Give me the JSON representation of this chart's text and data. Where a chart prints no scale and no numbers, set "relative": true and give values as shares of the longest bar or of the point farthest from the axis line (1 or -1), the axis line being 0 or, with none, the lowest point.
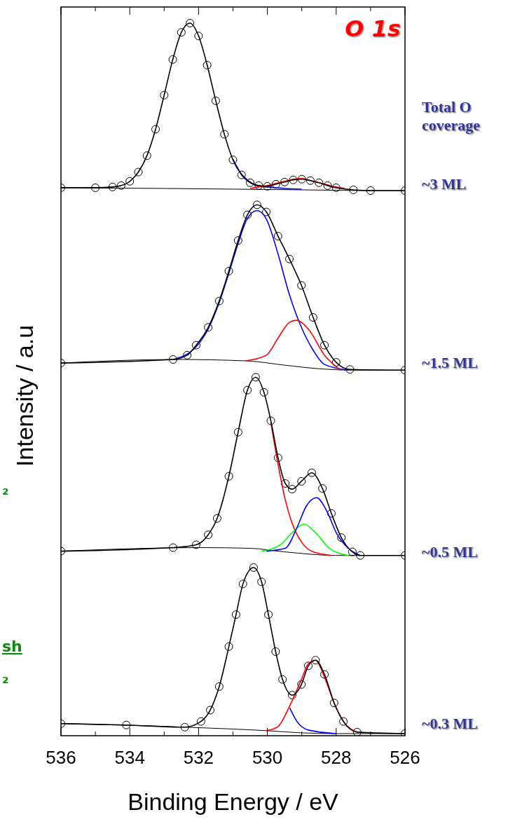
{
  "chart_data": {
    "type": "line",
    "title": "O 1s",
    "xlabel": "Binding Energy / eV",
    "ylabel": "Intensity / a.u",
    "relative": true,
    "tick_labels": "x",
    "xlim": [
      536,
      526
    ],
    "xticks": [
      536,
      {
        "value": 535,
        "label": null
      },
      534,
      {
        "value": 533,
        "label": null
      },
      532,
      {
        "value": 531,
        "label": null
      },
      530,
      {
        "value": 529,
        "label": null
      },
      528,
      {
        "value": 527,
        "label": null
      },
      526
    ],
    "annotations": [
      "Total O coverage",
      "~3 ML",
      "~1.5 ML",
      "~0.5 ML",
      "~0.3 ML",
      "₂",
      "sh",
      "₂"
    ],
    "series": [
      {
        "type": "scatter",
        "marker": "circle",
        "color": "#000000",
        "x": [
          536,
          535,
          534.5,
          534.25,
          534,
          533.75,
          533.5,
          533.25,
          533,
          532.75,
          532.5,
          532.25,
          532,
          531.75,
          531.5,
          531.25,
          531,
          530.75,
          530.5,
          530.25,
          530,
          529.75,
          529.5,
          529.25,
          529,
          528.75,
          528.5,
          528.25,
          528,
          527.5,
          527,
          526
        ],
        "values": [
          0.769,
          0.769,
          0.77,
          0.772,
          0.778,
          0.791,
          0.814,
          0.851,
          0.899,
          0.949,
          0.987,
          1.0,
          0.982,
          0.941,
          0.891,
          0.844,
          0.808,
          0.787,
          0.776,
          0.772,
          0.771,
          0.774,
          0.777,
          0.78,
          0.781,
          0.779,
          0.776,
          0.772,
          0.769,
          0.766,
          0.765,
          0.765
        ]
      },
      {
        "type": "line",
        "color": "#000000",
        "x": [
          536,
          533,
          531,
          529,
          527,
          526
        ],
        "values": [
          0.769,
          0.768,
          0.767,
          0.766,
          0.765,
          0.765
        ]
      },
      {
        "color": "#0000ff",
        "x": [
          531,
          530.75,
          530.5,
          530.25,
          530,
          529.5,
          529
        ],
        "values": [
          0.809,
          0.788,
          0.777,
          0.771,
          0.77,
          0.768,
          0.767
        ]
      },
      {
        "type": "line",
        "color": "#ff0000",
        "x": [
          530.5,
          530.25,
          530,
          529.75,
          529.5,
          529.25,
          529,
          528.75,
          528.5,
          528.25,
          528,
          527.75
        ],
        "values": [
          0.768,
          0.77,
          0.772,
          0.775,
          0.778,
          0.781,
          0.782,
          0.779,
          0.776,
          0.773,
          0.77,
          0.768
        ]
      },
      {
        "type": "line",
        "color": "#000000",
        "x": [
          536,
          535,
          534.5,
          534.25,
          534,
          533.75,
          533.5,
          533.25,
          533,
          532.75,
          532.5,
          532.25,
          532,
          531.75,
          531.5,
          531.25,
          531,
          530.75,
          530.5,
          530.25,
          530,
          529.75,
          529.5,
          529.25,
          529,
          528.75,
          528.5,
          528.25,
          528,
          527.5,
          527,
          526
        ],
        "values": [
          0.769,
          0.769,
          0.77,
          0.772,
          0.778,
          0.791,
          0.814,
          0.851,
          0.899,
          0.949,
          0.987,
          1.0,
          0.982,
          0.941,
          0.891,
          0.844,
          0.808,
          0.787,
          0.776,
          0.772,
          0.771,
          0.774,
          0.777,
          0.78,
          0.781,
          0.779,
          0.776,
          0.772,
          0.769,
          0.766,
          0.765,
          0.765
        ]
      },
      {
        "type": "scatter",
        "marker": "circle",
        "color": "#000000",
        "x": [
          536,
          532.74,
          532.33,
          532.07,
          531.72,
          531.4,
          531.12,
          530.85,
          530.58,
          530.3,
          530.03,
          529.69,
          529.36,
          529.01,
          528.67,
          528.34,
          528.0,
          527.6,
          526
        ],
        "values": [
          0.523,
          0.528,
          0.534,
          0.548,
          0.573,
          0.61,
          0.652,
          0.695,
          0.731,
          0.745,
          0.735,
          0.701,
          0.669,
          0.632,
          0.587,
          0.548,
          0.524,
          0.514,
          0.513
        ]
      },
      {
        "type": "line",
        "color": "#000000",
        "x": [
          536,
          532.7,
          530.6,
          529.5,
          528.5,
          527.5,
          526
        ],
        "values": [
          0.523,
          0.528,
          0.526,
          0.52,
          0.515,
          0.513,
          0.513
        ]
      },
      {
        "type": "line",
        "color": "#0000ff",
        "x": [
          532.74,
          532.07,
          531.72,
          531.4,
          531.12,
          530.85,
          530.58,
          530.3,
          530.03,
          529.69,
          529.36,
          529.01,
          528.67,
          528.34,
          527.65
        ],
        "values": [
          0.528,
          0.546,
          0.571,
          0.608,
          0.649,
          0.691,
          0.726,
          0.737,
          0.725,
          0.676,
          0.619,
          0.573,
          0.541,
          0.521,
          0.513
        ]
      },
      {
        "type": "line",
        "color": "#ff0000",
        "x": [
          530.64,
          530.03,
          529.69,
          529.36,
          529.16,
          528.8,
          528.34,
          527.87
        ],
        "values": [
          0.526,
          0.534,
          0.558,
          0.58,
          0.583,
          0.57,
          0.534,
          0.513
        ]
      },
      {
        "type": "line",
        "color": "#000000",
        "x": [
          536,
          532.74,
          532.33,
          532.07,
          531.72,
          531.4,
          531.12,
          530.85,
          530.58,
          530.3,
          530.03,
          529.69,
          529.36,
          529.01,
          528.67,
          528.34,
          528.0,
          527.6,
          526
        ],
        "values": [
          0.523,
          0.528,
          0.534,
          0.548,
          0.573,
          0.61,
          0.652,
          0.695,
          0.731,
          0.745,
          0.735,
          0.701,
          0.669,
          0.632,
          0.587,
          0.548,
          0.524,
          0.514,
          0.513
        ]
      },
      {
        "type": "scatter",
        "marker": "circle",
        "color": "#000000",
        "x": [
          536,
          532.74,
          532.07,
          531.72,
          531.46,
          531.12,
          530.85,
          530.58,
          530.34,
          530.1,
          529.9,
          529.69,
          529.48,
          529.28,
          529.01,
          528.71,
          528.4,
          528.14,
          527.85,
          527.53,
          527.3,
          526
        ],
        "values": [
          0.259,
          0.264,
          0.268,
          0.282,
          0.305,
          0.364,
          0.426,
          0.485,
          0.503,
          0.482,
          0.442,
          0.39,
          0.354,
          0.346,
          0.357,
          0.369,
          0.347,
          0.312,
          0.278,
          0.258,
          0.253,
          0.253
        ]
      },
      {
        "type": "line",
        "color": "#000000",
        "x": [
          536,
          532,
          530.5,
          529.5,
          528,
          526
        ],
        "values": [
          0.259,
          0.264,
          0.263,
          0.258,
          0.253,
          0.253
        ]
      },
      {
        "color": "#ff0000",
        "x": [
          529.9,
          529.69,
          529.48,
          529.28,
          529.01,
          528.67,
          528.14
        ],
        "values": [
          0.44,
          0.381,
          0.331,
          0.298,
          0.272,
          0.258,
          0.253
        ]
      },
      {
        "type": "line",
        "color": "#00ff00",
        "x": [
          530.17,
          529.62,
          529.28,
          528.94,
          528.6,
          528.2,
          527.65
        ],
        "values": [
          0.259,
          0.268,
          0.285,
          0.297,
          0.285,
          0.263,
          0.253
        ]
      },
      {
        "type": "line",
        "color": "#0000ff",
        "x": [
          530.03,
          529.48,
          529.14,
          528.87,
          528.57,
          528.27,
          528.0,
          527.65,
          527.3
        ],
        "values": [
          0.259,
          0.263,
          0.292,
          0.322,
          0.334,
          0.315,
          0.285,
          0.263,
          0.253
        ]
      },
      {
        "type": "line",
        "color": "#000000",
        "x": [
          536,
          532.74,
          532.07,
          531.72,
          531.46,
          531.12,
          530.85,
          530.58,
          530.34,
          530.1,
          529.9,
          529.69,
          529.48,
          529.28,
          529.01,
          528.71,
          528.4,
          528.14,
          527.85,
          527.53,
          527.3,
          526
        ],
        "values": [
          0.259,
          0.264,
          0.268,
          0.282,
          0.305,
          0.364,
          0.426,
          0.485,
          0.503,
          0.482,
          0.442,
          0.39,
          0.354,
          0.346,
          0.357,
          0.369,
          0.347,
          0.312,
          0.278,
          0.258,
          0.253,
          0.253
        ]
      },
      {
        "type": "scatter",
        "marker": "circle",
        "color": "#000000",
        "x": [
          536,
          534.1,
          532.4,
          531.93,
          531.66,
          531.4,
          531.12,
          530.91,
          530.71,
          530.4,
          530.17,
          529.97,
          529.76,
          529.56,
          529.28,
          529.01,
          528.81,
          528.6,
          528.34,
          528.06,
          527.79,
          527.39,
          526
        ],
        "values": [
          0.017,
          0.015,
          0.012,
          0.02,
          0.036,
          0.069,
          0.125,
          0.17,
          0.213,
          0.236,
          0.216,
          0.17,
          0.118,
          0.079,
          0.057,
          0.072,
          0.098,
          0.106,
          0.086,
          0.046,
          0.02,
          0.005,
          0.003
        ]
      },
      {
        "type": "line",
        "color": "#000000",
        "x": [
          536,
          532.4,
          530,
          529,
          528,
          526
        ],
        "values": [
          0.017,
          0.012,
          0.007,
          0.004,
          0.003,
          0.003
        ]
      },
      {
        "type": "line",
        "color": "#0000ff",
        "x": [
          529.35,
          529.14,
          528.81,
          528.0
        ],
        "values": [
          0.039,
          0.02,
          0.008,
          0.003
        ]
      },
      {
        "type": "line",
        "color": "#ff0000",
        "x": [
          530.03,
          529.69,
          529.35,
          529.01,
          528.81,
          528.6,
          528.34,
          528.06,
          527.79,
          527.39
        ],
        "values": [
          0.007,
          0.013,
          0.042,
          0.079,
          0.101,
          0.106,
          0.082,
          0.046,
          0.02,
          0.005
        ]
      },
      {
        "type": "line",
        "color": "#000000",
        "x": [
          536,
          534.1,
          532.4,
          531.93,
          531.66,
          531.4,
          531.12,
          530.91,
          530.71,
          530.4,
          530.17,
          529.97,
          529.76,
          529.56,
          529.28,
          529.01,
          528.81,
          528.6,
          528.34,
          528.06,
          527.79,
          527.39,
          526
        ],
        "values": [
          0.017,
          0.015,
          0.012,
          0.02,
          0.036,
          0.069,
          0.125,
          0.17,
          0.213,
          0.236,
          0.216,
          0.17,
          0.118,
          0.079,
          0.057,
          0.072,
          0.098,
          0.106,
          0.086,
          0.046,
          0.02,
          0.005,
          0.003
        ]
      }
    ]
  }
}
